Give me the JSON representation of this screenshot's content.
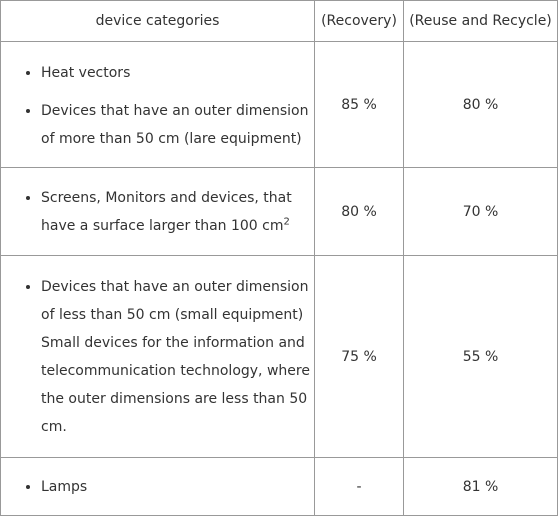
{
  "table": {
    "headers": [
      "device categories",
      "(Recovery)",
      "(Reuse and Recycle)"
    ],
    "rows": [
      {
        "items": [
          "Heat vectors",
          "Devices that have an outer dimension of more than 50 cm (lare equipment)"
        ],
        "recovery": "85 %",
        "reuse_recycle": "80 %"
      },
      {
        "items": [
          "Screens, Monitors and devices, that have a surface larger than 100 cm"
        ],
        "superscript": "2",
        "recovery": "80 %",
        "reuse_recycle": "70 %"
      },
      {
        "items": [
          "Devices that have an outer dimension of less than 50 cm (small equipment) Small devices for the information and telecommunication technology, where the outer dimensions are less than 50 cm."
        ],
        "recovery": "75 %",
        "reuse_recycle": "55 %"
      },
      {
        "items": [
          "Lamps"
        ],
        "recovery": "-",
        "reuse_recycle": "81 %"
      }
    ]
  }
}
